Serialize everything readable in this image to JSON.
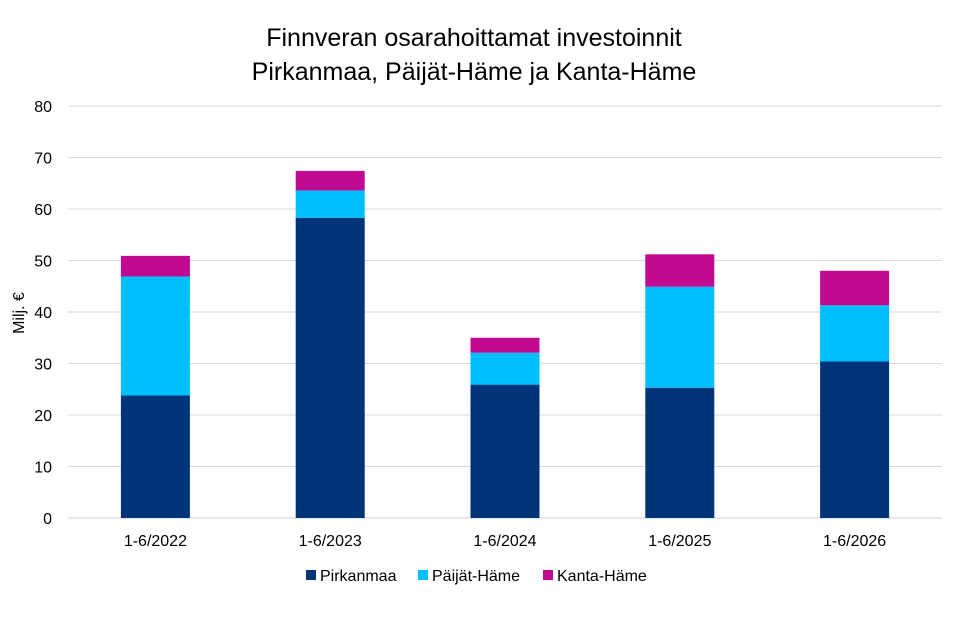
{
  "chart_data": {
    "type": "bar",
    "stacked": true,
    "title_lines": [
      "Finnveran osarahoittamat investoinnit",
      "Pirkanmaa, Päijät-Häme ja Kanta-Häme"
    ],
    "xlabel": "",
    "ylabel": "Milj. €",
    "ylim": [
      0,
      80
    ],
    "yticks": [
      "0",
      "10",
      "20",
      "30",
      "40",
      "50",
      "60",
      "70",
      "80"
    ],
    "grid": true,
    "legend_position": "bottom",
    "categories": [
      "1-6/2022",
      "1-6/2023",
      "1-6/2024",
      "1-6/2025",
      "1-6/2026"
    ],
    "series": [
      {
        "name": "Pirkanmaa",
        "color": "#003479",
        "values": [
          23.8,
          58.3,
          25.9,
          25.3,
          30.4
        ]
      },
      {
        "name": "Päijät-Häme",
        "color": "#00BFFF",
        "values": [
          23.1,
          5.3,
          6.2,
          19.6,
          10.9
        ]
      },
      {
        "name": "Kanta-Häme",
        "color": "#BF0A91",
        "values": [
          4.0,
          3.8,
          2.9,
          6.3,
          6.7
        ]
      }
    ]
  }
}
